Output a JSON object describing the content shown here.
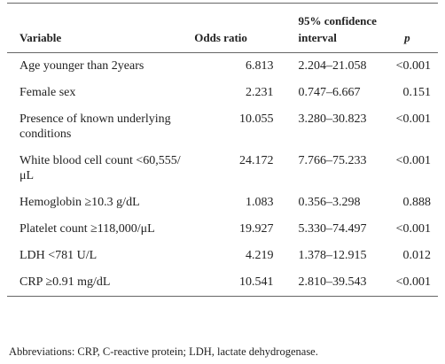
{
  "table": {
    "header": [
      "Variable",
      "Odds ratio",
      "95% confidence interval",
      "p"
    ],
    "rows": [
      [
        "Age younger than 2years",
        "6.813",
        "2.204–21.058",
        "<0.001"
      ],
      [
        "Female sex",
        "2.231",
        "0.747–6.667",
        "0.151"
      ],
      [
        "Presence of known underlying conditions",
        "10.055",
        "3.280–30.823",
        "<0.001"
      ],
      [
        "White blood cell count <60,555/μL",
        "24.172",
        "7.766–75.233",
        "<0.001"
      ],
      [
        "Hemoglobin ≥10.3 g/dL",
        "1.083",
        "0.356–3.298",
        "0.888"
      ],
      [
        "Platelet count ≥118,000/μL",
        "19.927",
        "5.330–74.497",
        "<0.001"
      ],
      [
        "LDH <781 U/L",
        "4.219",
        "1.378–12.915",
        "0.012"
      ],
      [
        "CRP ≥0.91 mg/dL",
        "10.541",
        "2.810–39.543",
        "<0.001"
      ]
    ],
    "footnote": "Abbreviations: CRP, C-reactive protein; LDH, lactate dehydrogenase."
  }
}
